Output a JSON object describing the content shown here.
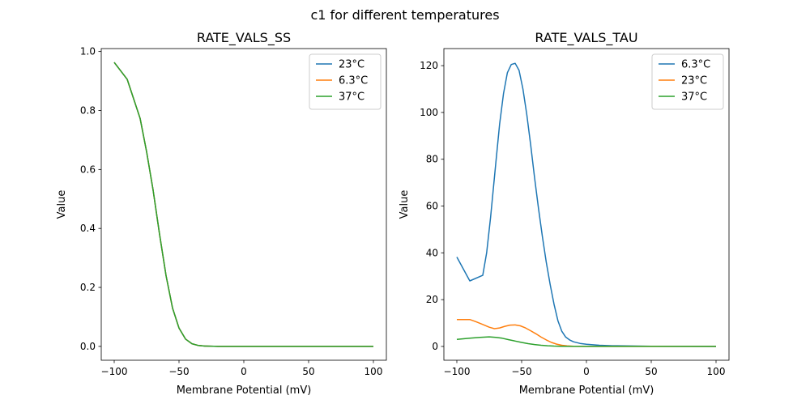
{
  "suptitle": "c1 for different temperatures",
  "chart_data": [
    {
      "type": "line",
      "title": "RATE_VALS_SS",
      "xlabel": "Membrane Potential (mV)",
      "ylabel": "Value",
      "xlim": [
        -110,
        110
      ],
      "ylim": [
        -0.047,
        1.01
      ],
      "xticks": [
        -100,
        -50,
        0,
        50,
        100
      ],
      "yticks": [
        0.0,
        0.2,
        0.4,
        0.6,
        0.8,
        1.0
      ],
      "ytick_decimals": 1,
      "legend_position": "top-right",
      "series": [
        {
          "name": "23°C",
          "color": "#1f77b4",
          "x": [
            -100,
            -90,
            -80,
            -75,
            -70,
            -65,
            -60,
            -55,
            -50,
            -45,
            -40,
            -35,
            -30,
            -20,
            0,
            50,
            100
          ],
          "y": [
            0.963,
            0.906,
            0.773,
            0.66,
            0.53,
            0.38,
            0.24,
            0.13,
            0.062,
            0.025,
            0.009,
            0.003,
            0.001,
            0,
            0,
            0,
            0
          ]
        },
        {
          "name": "6.3°C",
          "color": "#ff7f0e",
          "x": [
            -100,
            -90,
            -80,
            -75,
            -70,
            -65,
            -60,
            -55,
            -50,
            -45,
            -40,
            -35,
            -30,
            -20,
            0,
            50,
            100
          ],
          "y": [
            0.963,
            0.906,
            0.773,
            0.66,
            0.53,
            0.38,
            0.24,
            0.13,
            0.062,
            0.025,
            0.009,
            0.003,
            0.001,
            0,
            0,
            0,
            0
          ]
        },
        {
          "name": "37°C",
          "color": "#2ca02c",
          "x": [
            -100,
            -90,
            -80,
            -75,
            -70,
            -65,
            -60,
            -55,
            -50,
            -45,
            -40,
            -35,
            -30,
            -20,
            0,
            50,
            100
          ],
          "y": [
            0.963,
            0.906,
            0.773,
            0.66,
            0.53,
            0.38,
            0.24,
            0.13,
            0.062,
            0.025,
            0.009,
            0.003,
            0.001,
            0,
            0,
            0,
            0
          ]
        }
      ]
    },
    {
      "type": "line",
      "title": "RATE_VALS_TAU",
      "xlabel": "Membrane Potential (mV)",
      "ylabel": "Value",
      "xlim": [
        -110,
        110
      ],
      "ylim": [
        -5.9,
        127.3
      ],
      "xticks": [
        -100,
        -50,
        0,
        50,
        100
      ],
      "yticks": [
        0,
        20,
        40,
        60,
        80,
        100,
        120
      ],
      "ytick_decimals": 0,
      "legend_position": "top-right",
      "series": [
        {
          "name": "6.3°C",
          "color": "#1f77b4",
          "x": [
            -100,
            -90,
            -80,
            -77,
            -74,
            -70,
            -67,
            -64,
            -61,
            -58,
            -55,
            -52,
            -49,
            -46,
            -43,
            -40,
            -37,
            -34,
            -31,
            -28,
            -25,
            -22,
            -19,
            -16,
            -13,
            -10,
            -5,
            0,
            10,
            20,
            50,
            100
          ],
          "y": [
            38.2,
            28,
            30.4,
            40,
            55,
            78,
            95,
            108,
            117,
            120.5,
            121,
            118,
            110,
            99,
            86,
            72,
            59,
            47,
            36,
            26.5,
            18,
            11,
            6.5,
            4,
            2.8,
            2,
            1.3,
            0.9,
            0.5,
            0.3,
            0.1,
            0
          ]
        },
        {
          "name": "23°C",
          "color": "#ff7f0e",
          "x": [
            -100,
            -90,
            -85,
            -80,
            -75,
            -71,
            -67,
            -63,
            -59,
            -55,
            -51,
            -47,
            -43,
            -39,
            -35,
            -31,
            -27,
            -23,
            -19,
            -15,
            -10,
            0,
            20,
            100
          ],
          "y": [
            11.5,
            11.5,
            10.5,
            9.4,
            8.2,
            7.6,
            7.9,
            8.6,
            9.1,
            9.2,
            8.8,
            7.9,
            6.7,
            5.4,
            4.0,
            2.8,
            1.7,
            1.0,
            0.5,
            0.25,
            0.1,
            0,
            0,
            0
          ]
        },
        {
          "name": "37°C",
          "color": "#2ca02c",
          "x": [
            -100,
            -90,
            -82,
            -75,
            -70,
            -65,
            -60,
            -55,
            -50,
            -45,
            -40,
            -35,
            -30,
            -25,
            -20,
            -10,
            0,
            100
          ],
          "y": [
            3.0,
            3.5,
            3.9,
            4.1,
            3.9,
            3.5,
            2.9,
            2.3,
            1.7,
            1.2,
            0.8,
            0.5,
            0.3,
            0.15,
            0.08,
            0.02,
            0,
            0
          ]
        }
      ]
    }
  ]
}
